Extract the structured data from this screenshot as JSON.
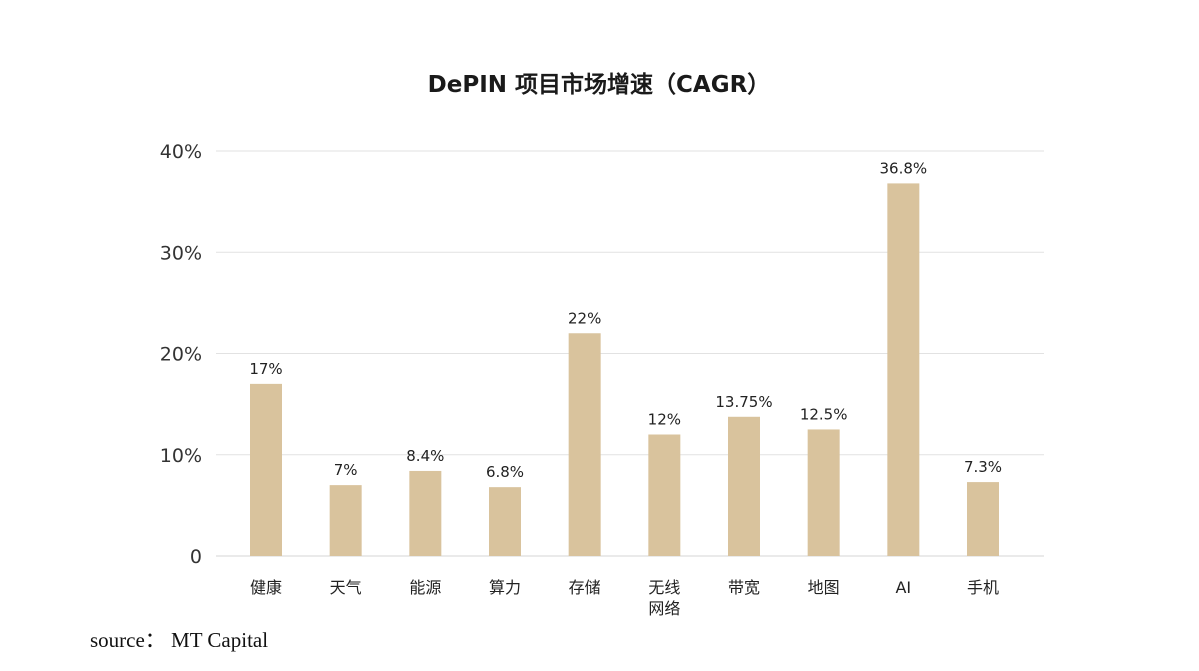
{
  "chart_data": {
    "type": "bar",
    "title": "DePIN 项目市场增速（CAGR）",
    "categories": [
      "健康",
      "天气",
      "能源",
      "算力",
      "存储",
      "无线\n网络",
      "带宽",
      "地图",
      "AI",
      "手机"
    ],
    "values": [
      17,
      7,
      8.4,
      6.8,
      22,
      12,
      13.75,
      12.5,
      36.8,
      7.3
    ],
    "data_labels": [
      "17%",
      "7%",
      "8.4%",
      "6.8%",
      "22%",
      "12%",
      "13.75%",
      "12.5%",
      "36.8%",
      "7.3%"
    ],
    "yticks": [
      0,
      10,
      20,
      30,
      40
    ],
    "ytick_labels": [
      "0",
      "10%",
      "20%",
      "30%",
      "40%"
    ],
    "ylim": [
      0,
      40
    ],
    "xlabel": "",
    "ylabel": "",
    "grid": true,
    "bar_color": "#d9c39d"
  },
  "source": {
    "text": "source：  MT Capital"
  }
}
